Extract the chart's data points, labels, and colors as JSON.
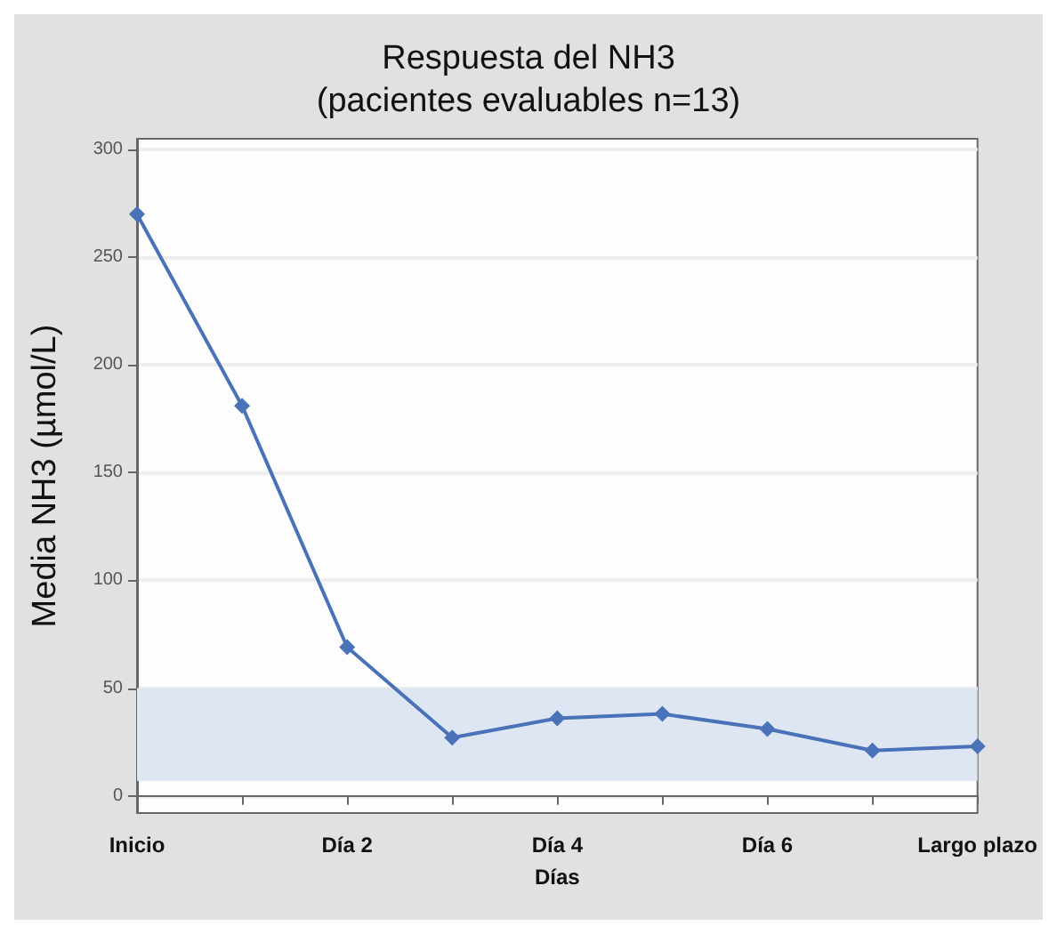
{
  "chart_data": {
    "type": "line",
    "title": "Respuesta del NH3\n(pacientes evaluables n=13)",
    "xlabel": "Días",
    "ylabel": "Media NH3 (µmol/L)",
    "categories": [
      "Inicio",
      null,
      "Día 2",
      null,
      "Día 4",
      null,
      "Día 6",
      null,
      "Largo plazo"
    ],
    "series": [
      {
        "color": "#4a72b8",
        "values": [
          270,
          181,
          69,
          27,
          36,
          38,
          31,
          21,
          23
        ]
      }
    ],
    "ylim": [
      -8,
      305
    ],
    "yticks": [
      0,
      50,
      100,
      150,
      200,
      250,
      300
    ],
    "grid": "y",
    "marker": "diamond",
    "line_style": "solid",
    "bands": [
      {
        "axis": "y",
        "from": 7,
        "to": 50,
        "color": "#dde6f2"
      }
    ]
  }
}
